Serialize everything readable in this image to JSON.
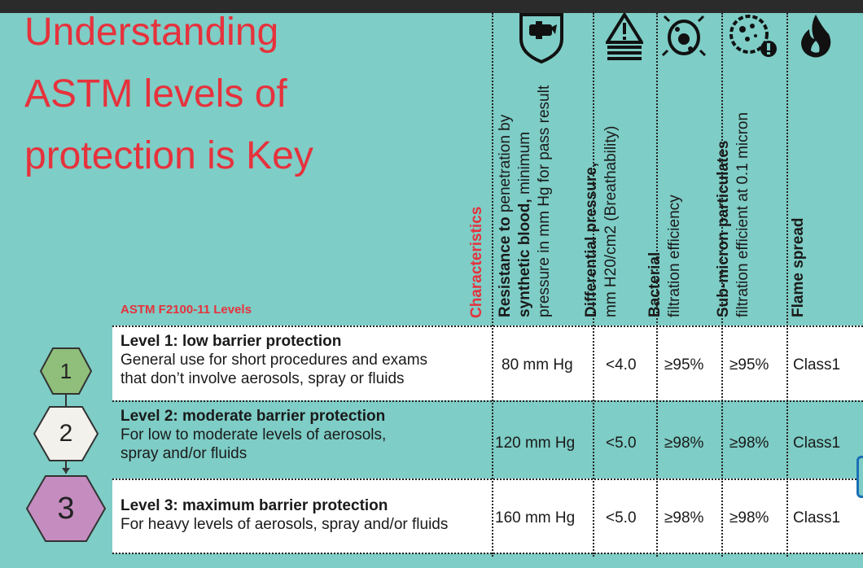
{
  "title": {
    "line1": "Understanding",
    "line2": "ASTM levels of",
    "line3": "protection is Key"
  },
  "levels_header": "ASTM F2100-11 Levels",
  "characteristics_label": "Characteristics",
  "columns": [
    {
      "icon": "blood-shield-icon",
      "bold": "Resistance to",
      "rest1": " penetration by",
      "bold2": "synthetic blood,",
      "rest2": " minimum",
      "line3": "pressure in mm Hg for pass result"
    },
    {
      "icon": "warning-vent-icon",
      "bold": "Differential pressure,",
      "line2": "mm H20/cm2 (Breathability)"
    },
    {
      "icon": "bacteria-icon",
      "bold": "Bacterial",
      "line2": "filtration efficiency"
    },
    {
      "icon": "particles-icon",
      "bold": "Sub-micron particulates",
      "line2": "filtration efficient at 0.1 micron"
    },
    {
      "icon": "flame-icon",
      "bold": "Flame spread"
    }
  ],
  "rows": [
    {
      "badge": "1",
      "title": "Level 1: low barrier protection",
      "line1": "General use for short procedures and exams",
      "line2": "that don’t involve aerosols, spray or fluids",
      "resistance": "80 mm Hg",
      "pressure": "<4.0",
      "bacterial": "≥95%",
      "submicron": "≥95%",
      "flame": "Class1"
    },
    {
      "badge": "2",
      "title": "Level 2: moderate barrier protection",
      "line1": "For low to moderate levels of aerosols,",
      "line2": "spray and/or fluids",
      "resistance": "120 mm Hg",
      "pressure": "<5.0",
      "bacterial": "≥98%",
      "submicron": "≥98%",
      "flame": "Class1"
    },
    {
      "badge": "3",
      "title": "Level 3: maximum barrier protection",
      "line1": "For heavy levels of aerosols, spray and/or fluids",
      "line2": "",
      "resistance": "160 mm Hg",
      "pressure": "<5.0",
      "bacterial": "≥98%",
      "submicron": "≥98%",
      "flame": "Class1"
    }
  ],
  "colors": {
    "background": "#7ecdc6",
    "accent_red": "#e6323c",
    "badge1": "#8fbf7a",
    "badge2": "#f3f1ec",
    "badge3": "#c58cc0"
  }
}
